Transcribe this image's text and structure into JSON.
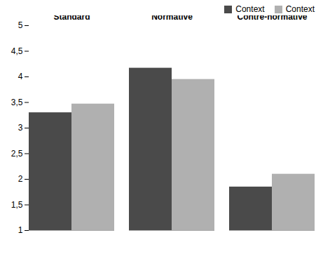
{
  "chart_data": {
    "type": "bar",
    "categories": [
      "Standard",
      "Normative",
      "Contre-normative"
    ],
    "series": [
      {
        "name": "Context",
        "color": "#4a4a4a",
        "values": [
          3.3,
          4.17,
          1.85
        ]
      },
      {
        "name": "Context",
        "color": "#b0b0b0",
        "values": [
          3.47,
          3.95,
          2.1
        ]
      }
    ],
    "ylim": [
      1,
      5
    ],
    "yticks": [
      1,
      {
        "value": 1.5,
        "label": "1,5"
      },
      2,
      {
        "value": 2.5,
        "label": "2,5"
      },
      3,
      {
        "value": 3.5,
        "label": "3,5"
      },
      4,
      {
        "value": 4.5,
        "label": "4,5"
      },
      5
    ],
    "grid": false,
    "legend": "upper right"
  }
}
